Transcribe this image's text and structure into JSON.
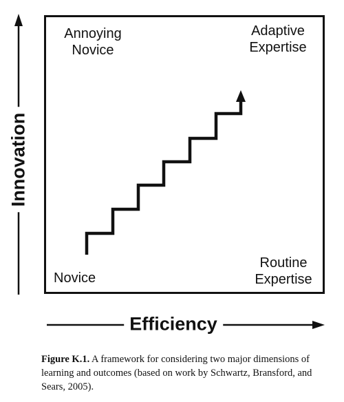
{
  "figure": {
    "y_axis_label": "Innovation",
    "x_axis_label": "Efficiency",
    "quadrants": {
      "top_left_line1": "Annoying",
      "top_left_line2": "Novice",
      "top_right_line1": "Adaptive",
      "top_right_line2": "Expertise",
      "bottom_left": "Novice",
      "bottom_right_line1": "Routine",
      "bottom_right_line2": "Expertise"
    }
  },
  "caption": {
    "label": "Figure K.1.",
    "text": " A framework for considering two major dimensions of learning and outcomes (based on work by Schwartz, Bransford, and Sears, 2005)."
  }
}
